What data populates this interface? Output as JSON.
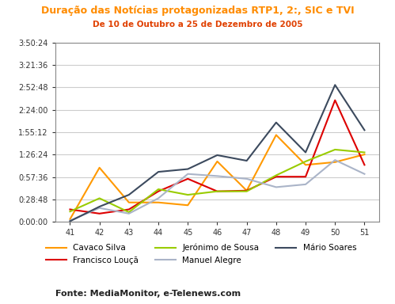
{
  "chart_data": {
    "type": "line",
    "title": "Duração das Notícias protagonizadas RTP1, 2:, SIC e TVI",
    "subtitle": "De 10 de Outubro a 25 de Dezembro de 2005",
    "source": "Fonte: MediaMonitor, e-Telenews.com",
    "categories": [
      "41",
      "42",
      "43",
      "44",
      "45",
      "46",
      "47",
      "48",
      "49",
      "50",
      "51"
    ],
    "series": [
      {
        "name": "Cavaco Silva",
        "color": "#ff9900",
        "values": [
          214,
          4180,
          1500,
          1500,
          1286,
          4663,
          2412,
          6700,
          4395,
          4610,
          5200
        ]
      },
      {
        "name": "Francisco Louçã",
        "color": "#dd0000",
        "values": [
          965,
          643,
          965,
          2358,
          3323,
          2358,
          2412,
          3484,
          3484,
          9380,
          4395
        ]
      },
      {
        "name": "Jerónimo de Sousa",
        "color": "#99cc00",
        "values": [
          804,
          1822,
          750,
          2519,
          2090,
          2358,
          2358,
          3591,
          4663,
          5574,
          5360
        ]
      },
      {
        "name": "Manuel Alegre",
        "color": "#aab4c8",
        "values": [
          107,
          1072,
          643,
          1822,
          3698,
          3537,
          3323,
          2680,
          2894,
          4770,
          3698
        ]
      },
      {
        "name": "Mário Soares",
        "color": "#3c4a5e",
        "values": [
          54,
          1179,
          2090,
          3859,
          4074,
          5146,
          4717,
          7665,
          5360,
          10559,
          7075
        ]
      }
    ],
    "ylim": [
      0,
      13824
    ],
    "yticks": [
      {
        "value": 0,
        "label": "0:00:00"
      },
      {
        "value": 1728,
        "label": "0:28:48"
      },
      {
        "value": 3456,
        "label": "0:57:36"
      },
      {
        "value": 5184,
        "label": "1:26:24"
      },
      {
        "value": 6912,
        "label": "1:55:12"
      },
      {
        "value": 8640,
        "label": "2:24:00"
      },
      {
        "value": 10368,
        "label": "2:52:48"
      },
      {
        "value": 12096,
        "label": "3:21:36"
      },
      {
        "value": 13824,
        "label": "3:50:24"
      }
    ],
    "grid": true,
    "legend": "bottom"
  }
}
